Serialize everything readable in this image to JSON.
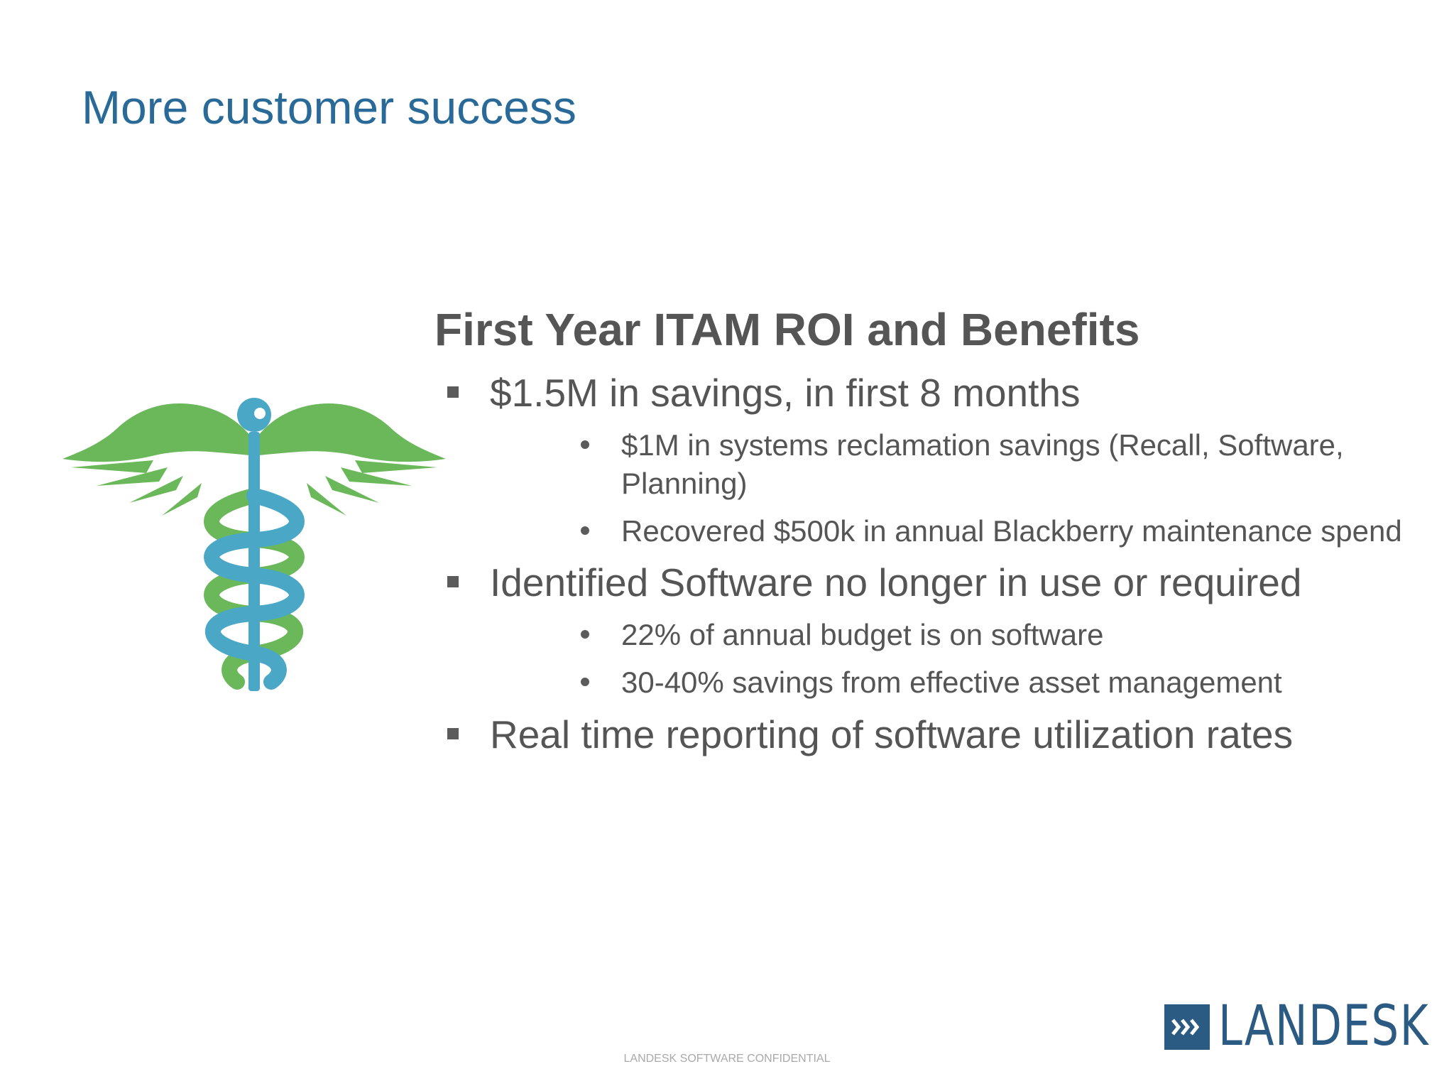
{
  "colors": {
    "title": "#2a6a98",
    "heading": "#555555",
    "body": "#555555",
    "emblem_green": "#6ab85a",
    "emblem_blue": "#4aa8c6",
    "logo_blue": "#2b5a82",
    "footer": "#a9a9a9"
  },
  "slide": {
    "title": "More customer success",
    "heading": "First Year ITAM ROI and Benefits",
    "bullets": [
      {
        "text": "$1.5M in savings, in first 8 months",
        "sub": [
          "$1M in systems reclamation savings (Recall, Software, Planning)",
          "Recovered $500k in annual Blackberry maintenance spend"
        ]
      },
      {
        "text": "Identified Software no longer in use or required",
        "sub": [
          "22% of annual budget is on software",
          "30-40% savings from effective asset management"
        ]
      },
      {
        "text": "Real time reporting of software utilization rates",
        "sub": []
      }
    ],
    "emblem_icon": "caduceus-icon",
    "logo_text": "LANDESK",
    "logo_icon": "chevrons-icon",
    "footer": "LANDESK SOFTWARE CONFIDENTIAL"
  }
}
